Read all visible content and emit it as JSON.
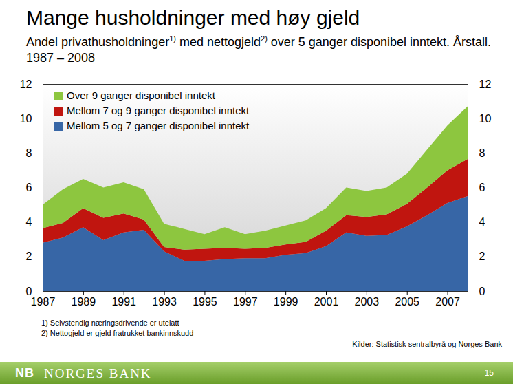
{
  "chart_data": {
    "type": "area",
    "title": "Mange husholdninger med høy gjeld",
    "subtitle": "Andel privathusholdninger1) med nettogjeld2) over 5 ganger disponibel inntekt. Årstall. 1987 – 2008",
    "stacked": true,
    "x": [
      1987,
      1988,
      1989,
      1990,
      1991,
      1992,
      1993,
      1994,
      1995,
      1996,
      1997,
      1998,
      1999,
      2000,
      2001,
      2002,
      2003,
      2004,
      2005,
      2006,
      2007,
      2008
    ],
    "series": [
      {
        "name": "Mellom 5 og 7 ganger disponibel inntekt",
        "color": "#3766a6",
        "values": [
          2.8,
          3.1,
          3.7,
          2.95,
          3.4,
          3.55,
          2.3,
          1.75,
          1.75,
          1.85,
          1.9,
          1.9,
          2.1,
          2.2,
          2.6,
          3.4,
          3.2,
          3.25,
          3.75,
          4.4,
          5.1,
          5.5
        ]
      },
      {
        "name": "Mellom 7 og 9 ganger disponibel inntekt",
        "color": "#c0150f",
        "values": [
          0.85,
          0.85,
          1.1,
          1.3,
          1.1,
          0.6,
          0.25,
          0.65,
          0.7,
          0.65,
          0.55,
          0.6,
          0.6,
          0.65,
          0.9,
          1.0,
          1.1,
          1.2,
          1.3,
          1.6,
          1.9,
          2.15
        ]
      },
      {
        "name": "Over 9 ganger disponibel inntekt",
        "color": "#8dc63f",
        "values": [
          1.35,
          1.95,
          1.7,
          1.75,
          1.8,
          1.75,
          1.35,
          1.2,
          0.85,
          1.2,
          0.85,
          1.0,
          1.1,
          1.25,
          1.3,
          1.6,
          1.5,
          1.55,
          1.75,
          2.2,
          2.6,
          3.05
        ]
      }
    ],
    "xlim": [
      1987,
      2008
    ],
    "xticks": [
      1987,
      1989,
      1991,
      1993,
      1995,
      1997,
      1999,
      2001,
      2003,
      2005,
      2007
    ],
    "ylim": [
      0,
      12
    ],
    "yticks": [
      0,
      2,
      4,
      6,
      8,
      10,
      12
    ],
    "y2lim": [
      0,
      12
    ],
    "y2ticks": [
      0,
      2,
      4,
      6,
      8,
      10,
      12
    ],
    "legend": "top-left",
    "grid": false,
    "footnotes": [
      "1) Selvstendig næringsdrivende er utelatt",
      "2) Nettogjeld er gjeld fratrukket bankinnskudd"
    ],
    "source": "Kilder: Statistisk sentralbyrå og Norges Bank"
  },
  "footer": {
    "logo": "NB",
    "name": "NORGES BANK",
    "page": "15"
  }
}
